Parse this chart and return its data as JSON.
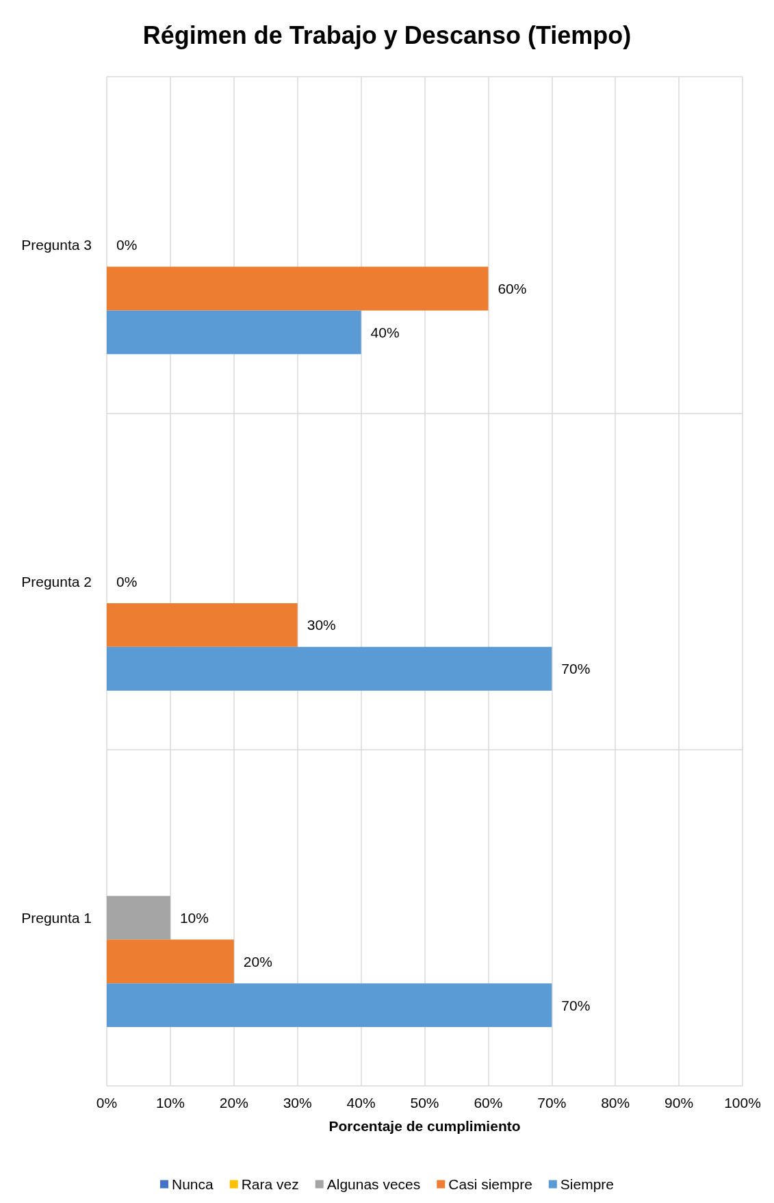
{
  "chart_data": {
    "type": "bar",
    "orientation": "horizontal",
    "title": "Régimen de Trabajo y Descanso (Tiempo)",
    "xlabel": "Porcentaje de cumplimiento",
    "categories": [
      "Pregunta 3",
      "Pregunta 2",
      "Pregunta 1"
    ],
    "series": [
      {
        "name": "Nunca",
        "color": "#4472c4",
        "values": [
          null,
          null,
          null
        ],
        "value_labels": [
          null,
          null,
          null
        ]
      },
      {
        "name": "Rara vez",
        "color": "#ffc000",
        "values": [
          null,
          null,
          null
        ],
        "value_labels": [
          null,
          null,
          null
        ]
      },
      {
        "name": "Algunas veces",
        "color": "#a5a5a5",
        "values": [
          0,
          0,
          10
        ],
        "value_labels": [
          "0%",
          "0%",
          "10%"
        ]
      },
      {
        "name": "Casi siempre",
        "color": "#ed7d31",
        "values": [
          60,
          30,
          20
        ],
        "value_labels": [
          "60%",
          "30%",
          "20%"
        ]
      },
      {
        "name": "Siempre",
        "color": "#5b9bd5",
        "values": [
          40,
          70,
          70
        ],
        "value_labels": [
          "40%",
          "70%",
          "70%"
        ]
      }
    ],
    "xlim": [
      0,
      100
    ],
    "xticks": [
      {
        "value": 0,
        "label": "0%"
      },
      {
        "value": 10,
        "label": "10%"
      },
      {
        "value": 20,
        "label": "20%"
      },
      {
        "value": 30,
        "label": "30%"
      },
      {
        "value": 40,
        "label": "40%"
      },
      {
        "value": 50,
        "label": "50%"
      },
      {
        "value": 60,
        "label": "60%"
      },
      {
        "value": 70,
        "label": "70%"
      },
      {
        "value": 80,
        "label": "80%"
      },
      {
        "value": 90,
        "label": "90%"
      },
      {
        "value": 100,
        "label": "100%"
      }
    ],
    "grid": true,
    "legend": "bottom"
  }
}
